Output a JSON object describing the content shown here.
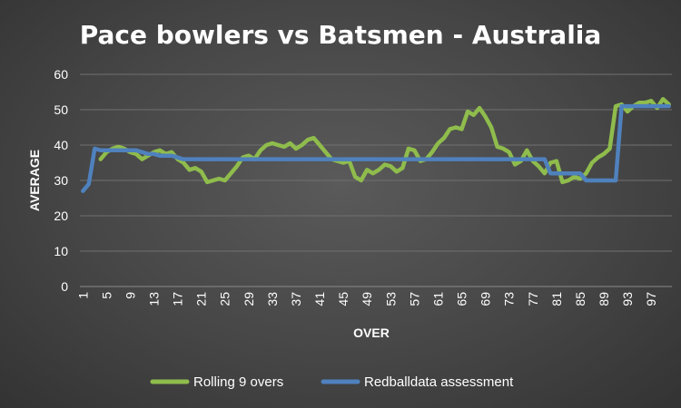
{
  "chart_data": {
    "type": "line",
    "title": "Pace bowlers vs Batsmen - Australia",
    "xlabel": "OVER",
    "ylabel": "AVERAGE",
    "ylim": [
      0,
      60
    ],
    "yticks": [
      0,
      10,
      20,
      30,
      40,
      50,
      60
    ],
    "xticks": [
      1,
      5,
      9,
      13,
      17,
      21,
      25,
      29,
      33,
      37,
      41,
      45,
      49,
      53,
      57,
      61,
      65,
      69,
      73,
      77,
      81,
      85,
      89,
      93,
      97
    ],
    "x_range": [
      1,
      100
    ],
    "grid": "horizontal",
    "legend_position": "bottom",
    "series": [
      {
        "name": "Rolling 9 overs",
        "color": "#8fbc4c",
        "start_over": 4,
        "values": [
          36,
          38,
          39,
          39.5,
          39,
          38,
          37.5,
          36,
          37,
          38,
          38.5,
          37.5,
          38,
          36,
          35,
          33,
          33.5,
          32.5,
          29.5,
          30,
          30.5,
          30,
          32,
          34,
          36.5,
          37,
          36,
          38.5,
          40,
          40.5,
          40,
          39.5,
          40.5,
          39,
          40,
          41.5,
          42,
          40,
          38,
          36,
          35.5,
          35,
          35.5,
          31,
          30,
          33,
          32,
          33,
          34.5,
          34,
          32.5,
          33.5,
          39,
          38.5,
          35.5,
          36,
          38,
          40.5,
          42,
          44.5,
          45,
          44.5,
          49.5,
          48.5,
          50.5,
          48,
          45,
          39.5,
          39,
          38,
          34.5,
          35.5,
          38.5,
          35.5,
          34,
          32,
          35,
          35.5,
          29.5,
          30,
          31,
          30.5,
          32,
          35,
          36.5,
          37.5,
          39,
          51,
          51.5,
          49.5,
          51,
          52,
          52,
          52.5,
          50.5,
          53,
          51.5
        ]
      },
      {
        "name": "Redballdata assessment",
        "color": "#4f81bd",
        "start_over": 1,
        "values": [
          27,
          29,
          39,
          38.5,
          38.5,
          38.5,
          38.5,
          38.5,
          38.5,
          38.5,
          38,
          37.5,
          37.5,
          37,
          37,
          37,
          36.5,
          36,
          36,
          36,
          36,
          36,
          36,
          36,
          36,
          36,
          36,
          36,
          36,
          36,
          36,
          36,
          36,
          36,
          36,
          36,
          36,
          36,
          36,
          36,
          36,
          36,
          36,
          36,
          36,
          36,
          36,
          36,
          36,
          36,
          36,
          36,
          36,
          36,
          36,
          36,
          36,
          36,
          36,
          36,
          36,
          36,
          36,
          36,
          36,
          36,
          36,
          36,
          36,
          36,
          36,
          36,
          36,
          36,
          36,
          36,
          36,
          36,
          36,
          32,
          32,
          32,
          32,
          32,
          32,
          30,
          30,
          30,
          30,
          30,
          30,
          51,
          51,
          51,
          51,
          51,
          51,
          51,
          51,
          51
        ]
      }
    ]
  }
}
